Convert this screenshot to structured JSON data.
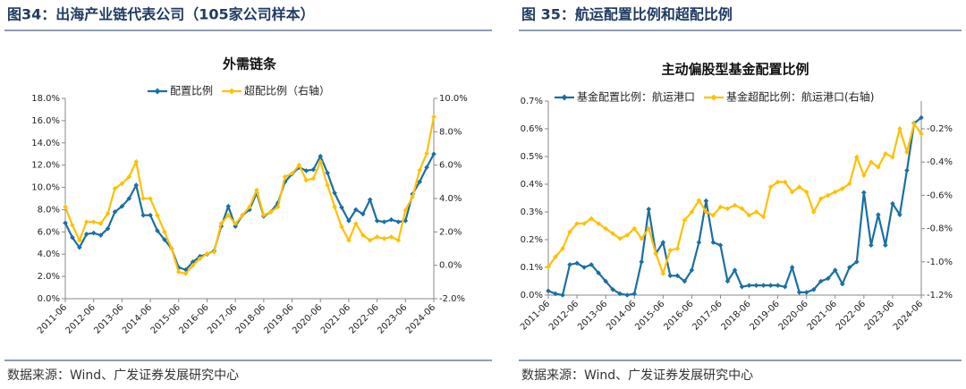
{
  "headings": [
    "图34：出海产业链代表公司（105家公司样本）",
    "图 35：航运配置比例和超配比例"
  ],
  "sources": [
    "数据来源：Wind、广发证券发展研究中心",
    "数据来源：Wind、广发证券发展研究中心"
  ],
  "chart_data": [
    {
      "type": "line",
      "title": "外需链条",
      "categories": [
        "2011-06",
        null,
        null,
        null,
        "2012-06",
        null,
        null,
        null,
        "2013-06",
        null,
        null,
        null,
        "2014-06",
        null,
        null,
        null,
        "2015-06",
        null,
        null,
        null,
        "2016-06",
        null,
        null,
        null,
        "2017-06",
        null,
        null,
        null,
        "2018-06",
        null,
        null,
        null,
        "2019-06",
        null,
        null,
        null,
        "2020-06",
        null,
        null,
        null,
        "2021-06",
        null,
        null,
        null,
        "2022-06",
        null,
        null,
        null,
        "2023-06",
        null,
        null,
        null,
        "2024-06"
      ],
      "series": [
        {
          "name": "配置比例",
          "color": "#1a6fa3",
          "values": [
            6.8,
            5.5,
            4.6,
            5.8,
            5.9,
            5.7,
            6.3,
            7.8,
            8.3,
            9.0,
            10.2,
            7.5,
            7.5,
            6.1,
            5.3,
            4.5,
            2.8,
            2.6,
            3.3,
            3.8,
            4.0,
            4.3,
            6.5,
            8.3,
            6.5,
            7.5,
            8.0,
            9.5,
            7.4,
            7.8,
            8.6,
            10.5,
            11.2,
            11.8,
            11.5,
            11.6,
            12.8,
            11.3,
            9.5,
            8.2,
            7.0,
            8.0,
            7.6,
            8.9,
            7.0,
            6.9,
            7.1,
            6.9,
            7.0,
            9.4,
            10.5,
            11.8,
            13.0
          ]
        },
        {
          "name": "超配比例（右轴）",
          "color": "#ffc000",
          "axis": "y2",
          "values": [
            3.5,
            2.4,
            1.5,
            2.6,
            2.6,
            2.5,
            3.1,
            4.6,
            4.9,
            5.3,
            6.2,
            4.0,
            4.0,
            3.0,
            2.0,
            1.0,
            -0.4,
            -0.5,
            0.0,
            0.4,
            0.7,
            0.8,
            2.5,
            3.0,
            2.5,
            3.0,
            3.5,
            4.5,
            3.0,
            3.2,
            3.5,
            5.3,
            5.5,
            6.0,
            5.1,
            5.2,
            6.2,
            4.8,
            3.5,
            2.3,
            1.5,
            2.5,
            1.8,
            1.5,
            1.7,
            1.6,
            1.7,
            1.5,
            3.3,
            4.1,
            5.7,
            6.7,
            8.9
          ]
        }
      ],
      "ylim": [
        0,
        18
      ],
      "yticks": [
        {
          "value": 0,
          "label": "0.0%"
        },
        {
          "value": 2,
          "label": "2.0%"
        },
        {
          "value": 4,
          "label": "4.0%"
        },
        {
          "value": 6,
          "label": "6.0%"
        },
        {
          "value": 8,
          "label": "8.0%"
        },
        {
          "value": 10,
          "label": "10.0%"
        },
        {
          "value": 12,
          "label": "12.0%"
        },
        {
          "value": 14,
          "label": "14.0%"
        },
        {
          "value": 16,
          "label": "16.0%"
        },
        {
          "value": 18,
          "label": "18.0%"
        }
      ],
      "y2lim": [
        -2,
        10
      ],
      "y2ticks": [
        {
          "value": -2,
          "label": "-2.0%"
        },
        {
          "value": 0,
          "label": "0.0%"
        },
        {
          "value": 2,
          "label": "2.0%"
        },
        {
          "value": 4,
          "label": "4.0%"
        },
        {
          "value": 6,
          "label": "6.0%"
        },
        {
          "value": 8,
          "label": "8.0%"
        },
        {
          "value": 10,
          "label": "10.0%"
        }
      ],
      "legend": "top"
    },
    {
      "type": "line",
      "title": "主动偏股型基金配置比例",
      "categories": [
        "2011-06",
        null,
        null,
        null,
        "2012-06",
        null,
        null,
        null,
        "2013-06",
        null,
        null,
        null,
        "2014-06",
        null,
        null,
        null,
        "2015-06",
        null,
        null,
        null,
        "2016-06",
        null,
        null,
        null,
        "2017-06",
        null,
        null,
        null,
        "2018-06",
        null,
        null,
        null,
        "2019-06",
        null,
        null,
        null,
        "2020-06",
        null,
        null,
        null,
        "2021-06",
        null,
        null,
        null,
        "2022-06",
        null,
        null,
        null,
        "2023-06",
        null,
        null,
        null,
        "2024-06"
      ],
      "series": [
        {
          "name": "基金配置比例：航运港口",
          "color": "#1a6fa3",
          "values": [
            0.015,
            0.005,
            0.0,
            0.11,
            0.115,
            0.1,
            0.11,
            0.08,
            0.05,
            0.02,
            0.005,
            0.0,
            0.005,
            0.12,
            0.31,
            0.15,
            0.19,
            0.07,
            0.07,
            0.05,
            0.09,
            0.19,
            0.34,
            0.19,
            0.18,
            0.05,
            0.09,
            0.03,
            0.035,
            0.035,
            0.035,
            0.035,
            0.035,
            0.03,
            0.1,
            0.01,
            0.01,
            0.02,
            0.05,
            0.06,
            0.09,
            0.04,
            0.1,
            0.12,
            0.37,
            0.18,
            0.29,
            0.18,
            0.33,
            0.29,
            0.45,
            0.62,
            0.64
          ]
        },
        {
          "name": "基金超配比例：航运港口(右轴)",
          "color": "#ffc000",
          "axis": "y2",
          "values": [
            -1.03,
            -0.97,
            -0.92,
            -0.82,
            -0.77,
            -0.77,
            -0.74,
            -0.77,
            -0.8,
            -0.83,
            -0.86,
            -0.84,
            -0.8,
            -0.86,
            -0.8,
            -0.95,
            -1.07,
            -0.93,
            -0.92,
            -0.75,
            -0.7,
            -0.63,
            -0.7,
            -0.72,
            -0.67,
            -0.68,
            -0.66,
            -0.68,
            -0.72,
            -0.7,
            -0.73,
            -0.55,
            -0.52,
            -0.52,
            -0.58,
            -0.55,
            -0.58,
            -0.7,
            -0.62,
            -0.6,
            -0.58,
            -0.56,
            -0.53,
            -0.37,
            -0.48,
            -0.4,
            -0.43,
            -0.35,
            -0.37,
            -0.2,
            -0.34,
            -0.17,
            -0.23
          ]
        }
      ],
      "ylim": [
        0,
        0.7
      ],
      "yticks": [
        {
          "value": 0,
          "label": "0.0%"
        },
        {
          "value": 0.1,
          "label": "0.1%"
        },
        {
          "value": 0.2,
          "label": "0.2%"
        },
        {
          "value": 0.3,
          "label": "0.3%"
        },
        {
          "value": 0.4,
          "label": "0.4%"
        },
        {
          "value": 0.5,
          "label": "0.5%"
        },
        {
          "value": 0.6,
          "label": "0.6%"
        },
        {
          "value": 0.7,
          "label": "0.7%"
        }
      ],
      "y2lim": [
        -1.2,
        -0.0333
      ],
      "y2ticks": [
        {
          "value": -1.2,
          "label": "-1.2%"
        },
        {
          "value": -1.0,
          "label": "-1.0%"
        },
        {
          "value": -0.8,
          "label": "-0.8%"
        },
        {
          "value": -0.6,
          "label": "-0.6%"
        },
        {
          "value": -0.4,
          "label": "-0.4%"
        },
        {
          "value": -0.2,
          "label": "-0.2%"
        }
      ],
      "legend": "top-left"
    }
  ]
}
